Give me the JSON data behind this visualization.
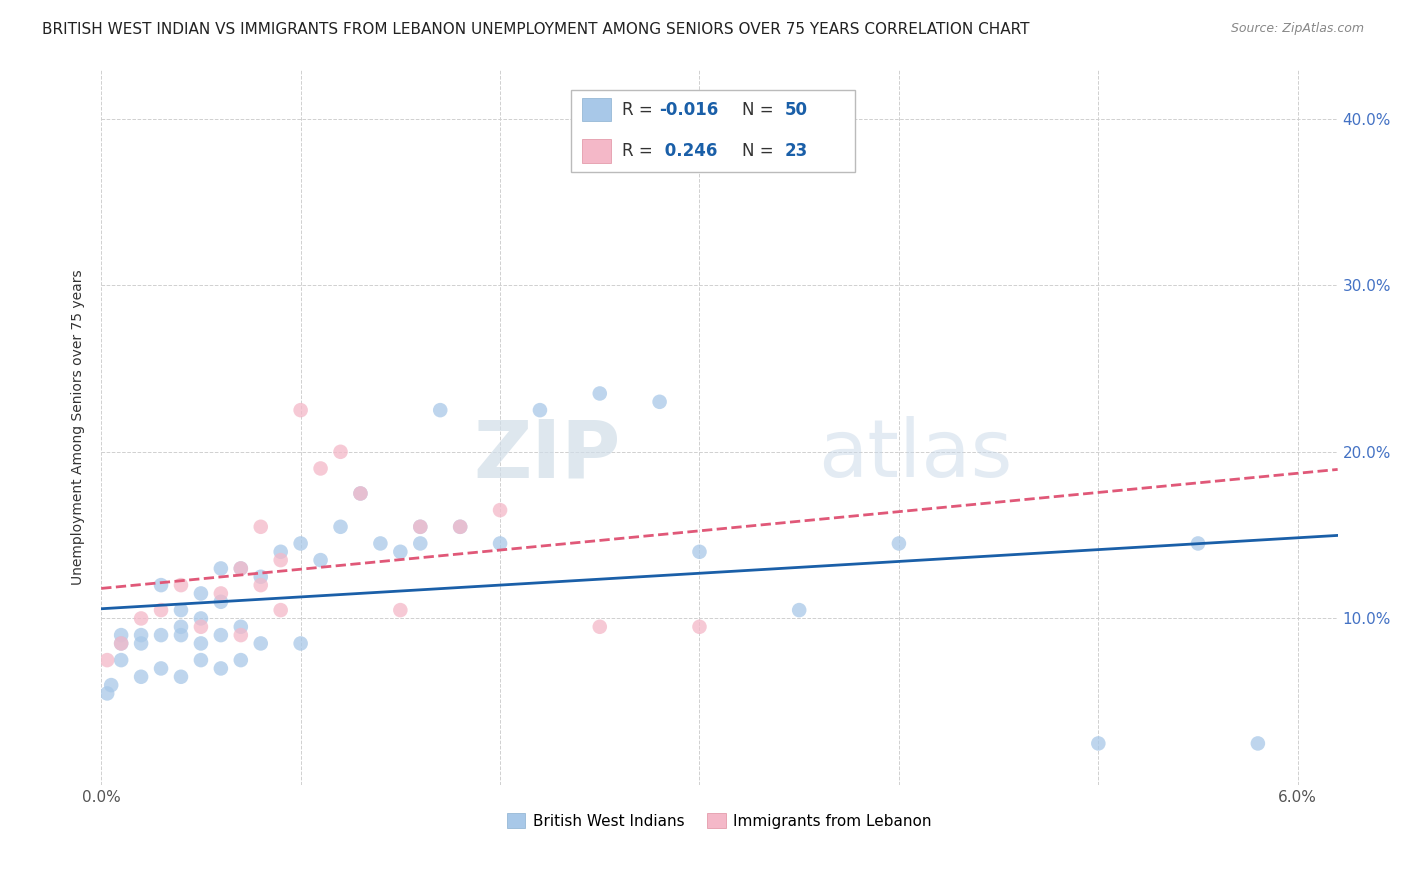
{
  "title": "BRITISH WEST INDIAN VS IMMIGRANTS FROM LEBANON UNEMPLOYMENT AMONG SENIORS OVER 75 YEARS CORRELATION CHART",
  "source": "Source: ZipAtlas.com",
  "ylabel": "Unemployment Among Seniors over 75 years",
  "xlim": [
    0.0,
    0.062
  ],
  "ylim": [
    0.0,
    0.43
  ],
  "yticks": [
    0.0,
    0.1,
    0.2,
    0.3,
    0.4
  ],
  "ytick_labels_right": [
    "",
    "10.0%",
    "20.0%",
    "30.0%",
    "40.0%"
  ],
  "xticks": [
    0.0,
    0.01,
    0.02,
    0.03,
    0.04,
    0.05,
    0.06
  ],
  "xtick_labels": [
    "0.0%",
    "",
    "",
    "",
    "",
    "",
    "6.0%"
  ],
  "r_blue": -0.016,
  "n_blue": 50,
  "r_pink": 0.246,
  "n_pink": 23,
  "blue_scatter_x": [
    0.0003,
    0.0005,
    0.001,
    0.001,
    0.001,
    0.002,
    0.002,
    0.002,
    0.003,
    0.003,
    0.003,
    0.004,
    0.004,
    0.004,
    0.004,
    0.005,
    0.005,
    0.005,
    0.005,
    0.006,
    0.006,
    0.006,
    0.006,
    0.007,
    0.007,
    0.007,
    0.008,
    0.008,
    0.009,
    0.01,
    0.01,
    0.011,
    0.012,
    0.013,
    0.014,
    0.015,
    0.016,
    0.016,
    0.017,
    0.018,
    0.02,
    0.022,
    0.025,
    0.028,
    0.03,
    0.035,
    0.04,
    0.05,
    0.055,
    0.058
  ],
  "blue_scatter_y": [
    0.055,
    0.06,
    0.075,
    0.085,
    0.09,
    0.065,
    0.085,
    0.09,
    0.07,
    0.09,
    0.12,
    0.065,
    0.09,
    0.095,
    0.105,
    0.075,
    0.085,
    0.1,
    0.115,
    0.07,
    0.09,
    0.11,
    0.13,
    0.075,
    0.095,
    0.13,
    0.085,
    0.125,
    0.14,
    0.085,
    0.145,
    0.135,
    0.155,
    0.175,
    0.145,
    0.14,
    0.145,
    0.155,
    0.225,
    0.155,
    0.145,
    0.225,
    0.235,
    0.23,
    0.14,
    0.105,
    0.145,
    0.025,
    0.145,
    0.025
  ],
  "pink_scatter_x": [
    0.0003,
    0.001,
    0.002,
    0.003,
    0.004,
    0.005,
    0.006,
    0.007,
    0.007,
    0.008,
    0.008,
    0.009,
    0.009,
    0.01,
    0.011,
    0.012,
    0.013,
    0.015,
    0.016,
    0.018,
    0.02,
    0.025,
    0.03
  ],
  "pink_scatter_y": [
    0.075,
    0.085,
    0.1,
    0.105,
    0.12,
    0.095,
    0.115,
    0.09,
    0.13,
    0.12,
    0.155,
    0.105,
    0.135,
    0.225,
    0.19,
    0.2,
    0.175,
    0.105,
    0.155,
    0.155,
    0.165,
    0.095,
    0.095
  ],
  "blue_color": "#a8c8e8",
  "pink_color": "#f4b8c8",
  "blue_line_color": "#1a5fa8",
  "pink_line_color": "#e05878",
  "grid_color": "#d0d0d0",
  "watermark_zip": "ZIP",
  "watermark_atlas": "atlas",
  "legend_label_blue": "British West Indians",
  "legend_label_pink": "Immigrants from Lebanon",
  "title_fontsize": 11,
  "axis_label_fontsize": 10,
  "tick_fontsize": 11
}
